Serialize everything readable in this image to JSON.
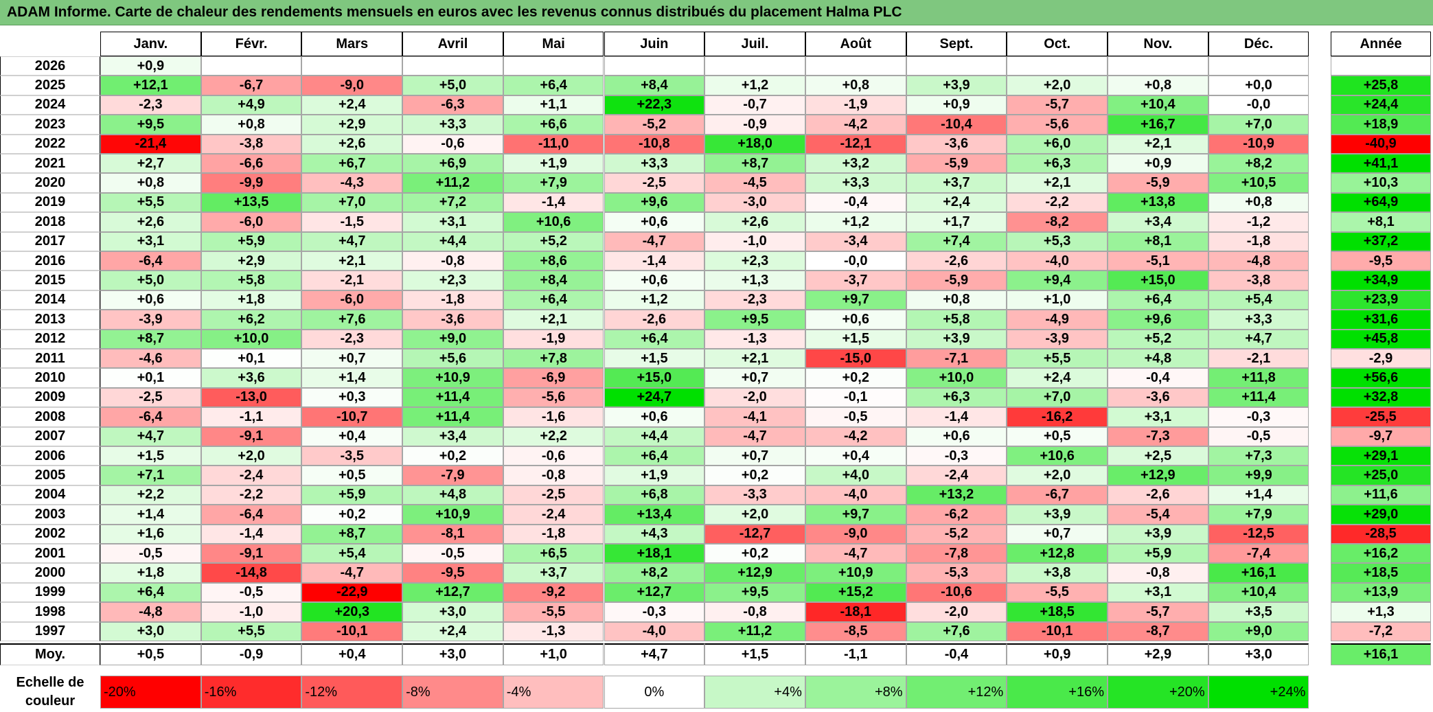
{
  "title": "ADAM Informe. Carte de chaleur des rendements mensuels en euros avec les revenus connus distribués du placement Halma PLC",
  "chart_data": {
    "type": "heatmap",
    "title": "ADAM Informe. Carte de chaleur des rendements mensuels en euros avec les revenus connus distribués du placement Halma PLC",
    "months": [
      "Janv.",
      "Févr.",
      "Mars",
      "Avril",
      "Mai",
      "Juin",
      "Juil.",
      "Août",
      "Sept.",
      "Oct.",
      "Nov.",
      "Déc."
    ],
    "year_header": "Année",
    "rows": [
      {
        "year": "2026",
        "months": [
          "+0,9",
          "",
          "",
          "",
          "",
          "",
          "",
          "",
          "",
          "",
          "",
          ""
        ],
        "annual": ""
      },
      {
        "year": "2025",
        "months": [
          "+12,1",
          "-6,7",
          "-9,0",
          "+5,0",
          "+6,4",
          "+8,4",
          "+1,2",
          "+0,8",
          "+3,9",
          "+2,0",
          "+0,8",
          "+0,0"
        ],
        "annual": "+25,8"
      },
      {
        "year": "2024",
        "months": [
          "-2,3",
          "+4,9",
          "+2,4",
          "-6,3",
          "+1,1",
          "+22,3",
          "-0,7",
          "-1,9",
          "+0,9",
          "-5,7",
          "+10,4",
          "-0,0"
        ],
        "annual": "+24,4"
      },
      {
        "year": "2023",
        "months": [
          "+9,5",
          "+0,8",
          "+2,9",
          "+3,3",
          "+6,6",
          "-5,2",
          "-0,9",
          "-4,2",
          "-10,4",
          "-5,6",
          "+16,7",
          "+7,0"
        ],
        "annual": "+18,9"
      },
      {
        "year": "2022",
        "months": [
          "-21,4",
          "-3,8",
          "+2,6",
          "-0,6",
          "-11,0",
          "-10,8",
          "+18,0",
          "-12,1",
          "-3,6",
          "+6,0",
          "+2,1",
          "-10,9"
        ],
        "annual": "-40,9"
      },
      {
        "year": "2021",
        "months": [
          "+2,7",
          "-6,6",
          "+6,7",
          "+6,9",
          "+1,9",
          "+3,3",
          "+8,7",
          "+3,2",
          "-5,9",
          "+6,3",
          "+0,9",
          "+8,2"
        ],
        "annual": "+41,1"
      },
      {
        "year": "2020",
        "months": [
          "+0,8",
          "-9,9",
          "-4,3",
          "+11,2",
          "+7,9",
          "-2,5",
          "-4,5",
          "+3,3",
          "+3,7",
          "+2,1",
          "-5,9",
          "+10,5"
        ],
        "annual": "+10,3"
      },
      {
        "year": "2019",
        "months": [
          "+5,5",
          "+13,5",
          "+7,0",
          "+7,2",
          "-1,4",
          "+9,6",
          "-3,0",
          "-0,4",
          "+2,4",
          "-2,2",
          "+13,8",
          "+0,8"
        ],
        "annual": "+64,9"
      },
      {
        "year": "2018",
        "months": [
          "+2,6",
          "-6,0",
          "-1,5",
          "+3,1",
          "+10,6",
          "+0,6",
          "+2,6",
          "+1,2",
          "+1,7",
          "-8,2",
          "+3,4",
          "-1,2"
        ],
        "annual": "+8,1"
      },
      {
        "year": "2017",
        "months": [
          "+3,1",
          "+5,9",
          "+4,7",
          "+4,4",
          "+5,2",
          "-4,7",
          "-1,0",
          "-3,4",
          "+7,4",
          "+5,3",
          "+8,1",
          "-1,8"
        ],
        "annual": "+37,2"
      },
      {
        "year": "2016",
        "months": [
          "-6,4",
          "+2,9",
          "+2,1",
          "-0,8",
          "+8,6",
          "-1,4",
          "+2,3",
          "-0,0",
          "-2,6",
          "-4,0",
          "-5,1",
          "-4,8"
        ],
        "annual": "-9,5"
      },
      {
        "year": "2015",
        "months": [
          "+5,0",
          "+5,8",
          "-2,1",
          "+2,3",
          "+8,4",
          "+0,6",
          "+1,3",
          "-3,7",
          "-5,9",
          "+9,4",
          "+15,0",
          "-3,8"
        ],
        "annual": "+34,9"
      },
      {
        "year": "2014",
        "months": [
          "+0,6",
          "+1,8",
          "-6,0",
          "-1,8",
          "+6,4",
          "+1,2",
          "-2,3",
          "+9,7",
          "+0,8",
          "+1,0",
          "+6,4",
          "+5,4"
        ],
        "annual": "+23,9"
      },
      {
        "year": "2013",
        "months": [
          "-3,9",
          "+6,2",
          "+7,6",
          "-3,6",
          "+2,1",
          "-2,6",
          "+9,5",
          "+0,6",
          "+5,8",
          "-4,9",
          "+9,6",
          "+3,3"
        ],
        "annual": "+31,6"
      },
      {
        "year": "2012",
        "months": [
          "+8,7",
          "+10,0",
          "-2,3",
          "+9,0",
          "-1,9",
          "+6,4",
          "-1,3",
          "+1,5",
          "+3,9",
          "-3,9",
          "+5,2",
          "+4,7"
        ],
        "annual": "+45,8"
      },
      {
        "year": "2011",
        "months": [
          "-4,6",
          "+0,1",
          "+0,7",
          "+5,6",
          "+7,8",
          "+1,5",
          "+2,1",
          "-15,0",
          "-7,1",
          "+5,5",
          "+4,8",
          "-2,1"
        ],
        "annual": "-2,9"
      },
      {
        "year": "2010",
        "months": [
          "+0,1",
          "+3,6",
          "+1,4",
          "+10,9",
          "-6,9",
          "+15,0",
          "+0,7",
          "+0,2",
          "+10,0",
          "+2,4",
          "-0,4",
          "+11,8"
        ],
        "annual": "+56,6"
      },
      {
        "year": "2009",
        "months": [
          "-2,5",
          "-13,0",
          "+0,3",
          "+11,4",
          "-5,6",
          "+24,7",
          "-2,0",
          "-0,1",
          "+6,3",
          "+7,0",
          "-3,6",
          "+11,4"
        ],
        "annual": "+32,8"
      },
      {
        "year": "2008",
        "months": [
          "-6,4",
          "-1,1",
          "-10,7",
          "+11,4",
          "-1,6",
          "+0,6",
          "-4,1",
          "-0,5",
          "-1,4",
          "-16,2",
          "+3,1",
          "-0,3"
        ],
        "annual": "-25,5"
      },
      {
        "year": "2007",
        "months": [
          "+4,7",
          "-9,1",
          "+0,4",
          "+3,4",
          "+2,2",
          "+4,4",
          "-4,7",
          "-4,2",
          "+0,6",
          "+0,5",
          "-7,3",
          "-0,5"
        ],
        "annual": "-9,7"
      },
      {
        "year": "2006",
        "months": [
          "+1,5",
          "+2,0",
          "-3,5",
          "+0,2",
          "-0,6",
          "+6,4",
          "+0,7",
          "+0,4",
          "-0,3",
          "+10,6",
          "+2,5",
          "+7,3"
        ],
        "annual": "+29,1"
      },
      {
        "year": "2005",
        "months": [
          "+7,1",
          "-2,4",
          "+0,5",
          "-7,9",
          "-0,8",
          "+1,9",
          "+0,2",
          "+4,0",
          "-2,4",
          "+2,0",
          "+12,9",
          "+9,9"
        ],
        "annual": "+25,0"
      },
      {
        "year": "2004",
        "months": [
          "+2,2",
          "-2,2",
          "+5,9",
          "+4,8",
          "-2,5",
          "+6,8",
          "-3,3",
          "-4,0",
          "+13,2",
          "-6,7",
          "-2,6",
          "+1,4"
        ],
        "annual": "+11,6"
      },
      {
        "year": "2003",
        "months": [
          "+1,4",
          "-6,4",
          "+0,2",
          "+10,9",
          "-2,4",
          "+13,4",
          "+2,0",
          "+9,7",
          "-6,2",
          "+3,9",
          "-5,4",
          "+7,9"
        ],
        "annual": "+29,0"
      },
      {
        "year": "2002",
        "months": [
          "+1,6",
          "-1,4",
          "+8,7",
          "-8,1",
          "-1,8",
          "+4,3",
          "-12,7",
          "-9,0",
          "-5,2",
          "+0,7",
          "+3,9",
          "-12,5"
        ],
        "annual": "-28,5"
      },
      {
        "year": "2001",
        "months": [
          "-0,5",
          "-9,1",
          "+5,4",
          "-0,5",
          "+6,5",
          "+18,1",
          "+0,2",
          "-4,7",
          "-7,8",
          "+12,8",
          "+5,9",
          "-7,4"
        ],
        "annual": "+16,2"
      },
      {
        "year": "2000",
        "months": [
          "+1,8",
          "-14,8",
          "-4,7",
          "-9,5",
          "+3,7",
          "+8,2",
          "+12,9",
          "+10,9",
          "-5,3",
          "+3,8",
          "-0,8",
          "+16,1"
        ],
        "annual": "+18,5"
      },
      {
        "year": "1999",
        "months": [
          "+6,4",
          "-0,5",
          "-22,9",
          "+12,7",
          "-9,2",
          "+12,7",
          "+9,5",
          "+15,2",
          "-10,6",
          "-5,5",
          "+3,1",
          "+10,4"
        ],
        "annual": "+13,9"
      },
      {
        "year": "1998",
        "months": [
          "-4,8",
          "-1,0",
          "+20,3",
          "+3,0",
          "-5,5",
          "-0,3",
          "-0,8",
          "-18,1",
          "-2,0",
          "+18,5",
          "-5,7",
          "+3,5"
        ],
        "annual": "+1,3"
      },
      {
        "year": "1997",
        "months": [
          "+3,0",
          "+5,5",
          "-10,1",
          "+2,4",
          "-1,3",
          "-4,0",
          "+11,2",
          "-8,5",
          "+7,6",
          "-10,1",
          "-8,7",
          "+9,0"
        ],
        "annual": "-7,2"
      }
    ],
    "average": {
      "label": "Moy.",
      "months": [
        "+0,5",
        "-0,9",
        "+0,4",
        "+3,0",
        "+1,0",
        "+4,7",
        "+1,5",
        "-1,1",
        "-0,4",
        "+0,9",
        "+2,9",
        "+3,0"
      ],
      "annual": "+16,1"
    },
    "color_scale": {
      "label": "Echelle de couleur",
      "steps": [
        "-20%",
        "-16%",
        "-12%",
        "-8%",
        "-4%",
        "0%",
        "+4%",
        "+8%",
        "+12%",
        "+16%",
        "+20%",
        "+24%"
      ],
      "negative_color": "#ff0000",
      "positive_color": "#00e000",
      "neutral_color": "#ffffff"
    }
  }
}
